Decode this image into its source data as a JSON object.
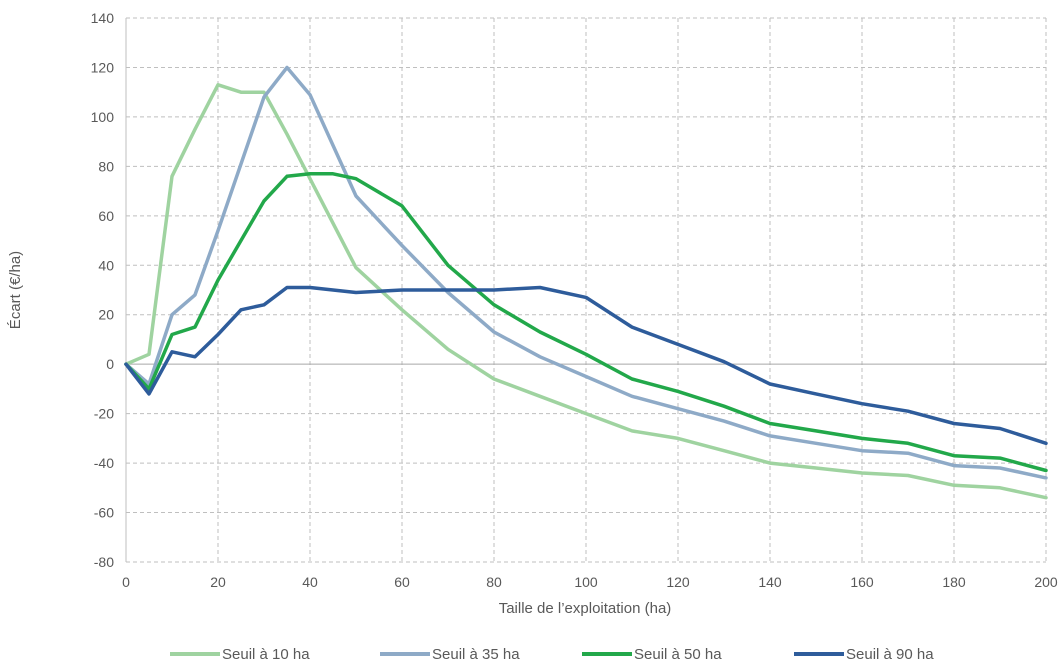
{
  "chart_data": {
    "type": "line",
    "xlabel": "Taille de l’exploitation (ha)",
    "ylabel": "Écart (€/ha)",
    "xlim": [
      0,
      200
    ],
    "ylim": [
      -80,
      140
    ],
    "x_ticks": [
      "0",
      "20",
      "40",
      "60",
      "80",
      "100",
      "120",
      "140",
      "160",
      "180",
      "200"
    ],
    "y_ticks": [
      "-80",
      "-60",
      "-40",
      "-20",
      "0",
      "20",
      "40",
      "60",
      "80",
      "100",
      "120",
      "140"
    ],
    "grid": true,
    "legend_position": "bottom",
    "series": [
      {
        "name": "Seuil à 10 ha",
        "color": "#9fd3a0",
        "x": [
          0,
          5,
          10,
          15,
          20,
          25,
          30,
          35,
          40,
          50,
          60,
          70,
          80,
          90,
          100,
          110,
          120,
          130,
          140,
          150,
          160,
          170,
          180,
          190,
          200
        ],
        "y": [
          0,
          4,
          76,
          95,
          113,
          110,
          110,
          93,
          75,
          39,
          22,
          6,
          -6,
          -13,
          -20,
          -27,
          -30,
          -35,
          -40,
          -42,
          -44,
          -45,
          -49,
          -50,
          -54
        ]
      },
      {
        "name": "Seuil à 35 ha",
        "color": "#8eaac7",
        "x": [
          0,
          5,
          10,
          15,
          20,
          25,
          30,
          35,
          40,
          50,
          60,
          70,
          80,
          90,
          100,
          110,
          120,
          130,
          140,
          150,
          160,
          170,
          180,
          190,
          200
        ],
        "y": [
          0,
          -8,
          20,
          28,
          54,
          81,
          108,
          120,
          109,
          68,
          48,
          29,
          13,
          3,
          -5,
          -13,
          -18,
          -23,
          -29,
          -32,
          -35,
          -36,
          -41,
          -42,
          -46
        ]
      },
      {
        "name": "Seuil à 50 ha",
        "color": "#22a84a",
        "x": [
          0,
          5,
          10,
          15,
          20,
          25,
          30,
          35,
          40,
          45,
          50,
          60,
          70,
          80,
          90,
          100,
          110,
          120,
          130,
          140,
          150,
          160,
          170,
          180,
          190,
          200
        ],
        "y": [
          0,
          -10,
          12,
          15,
          34,
          50,
          66,
          76,
          77,
          77,
          75,
          64,
          40,
          24,
          13,
          4,
          -6,
          -11,
          -17,
          -24,
          -27,
          -30,
          -32,
          -37,
          -38,
          -43
        ]
      },
      {
        "name": "Seuil à 90 ha",
        "color": "#2e5c9b",
        "x": [
          0,
          5,
          10,
          15,
          20,
          25,
          30,
          35,
          40,
          50,
          60,
          70,
          80,
          90,
          100,
          110,
          120,
          130,
          140,
          150,
          160,
          170,
          180,
          190,
          200
        ],
        "y": [
          0,
          -12,
          5,
          3,
          12,
          22,
          24,
          31,
          31,
          29,
          30,
          30,
          30,
          31,
          27,
          15,
          8,
          1,
          -8,
          -12,
          -16,
          -19,
          -24,
          -26,
          -32
        ]
      }
    ]
  }
}
